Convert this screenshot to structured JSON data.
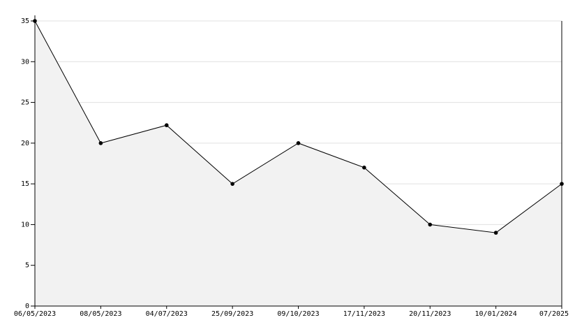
{
  "chart_data": {
    "type": "area",
    "categories": [
      "06/05/2023",
      "08/05/2023",
      "04/07/2023",
      "25/09/2023",
      "09/10/2023",
      "17/11/2023",
      "20/11/2023",
      "10/01/2024",
      "07/2025"
    ],
    "values": [
      35,
      20,
      22.2,
      15,
      20,
      17,
      10,
      9,
      15
    ],
    "color": "#000000",
    "fill_color": "#f2f2f2",
    "ylim": [
      0,
      35
    ],
    "yticks": [
      0,
      5,
      10,
      15,
      20,
      25,
      30,
      35
    ],
    "grid": true
  }
}
